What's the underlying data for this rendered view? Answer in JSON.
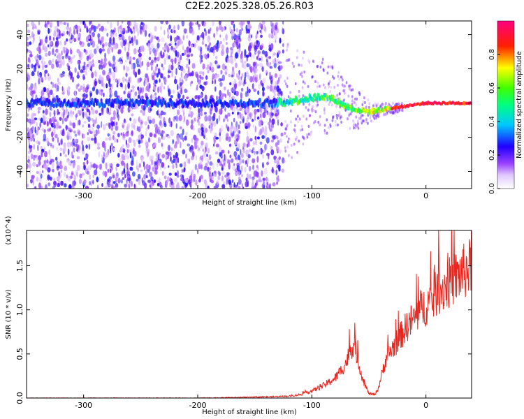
{
  "title": "C2E2.2025.328.05.26.R03",
  "chart_data": [
    {
      "type": "heatmap",
      "xlabel": "Height of straight line (km)",
      "ylabel": "Frequency (Hz)",
      "xlim": [
        -350,
        40
      ],
      "ylim": [
        -50,
        48
      ],
      "xticks": [
        -300,
        -200,
        -100,
        0
      ],
      "xtick_labels": [
        "-300",
        "-200",
        "-100",
        "0"
      ],
      "yticks": [
        -40,
        -20,
        0,
        20,
        40
      ],
      "ytick_labels": [
        "-40",
        "-20",
        "0",
        "20",
        "40"
      ],
      "colorbar": {
        "label": "Normalized spectral amplitude",
        "range": [
          0.0,
          1.0
        ],
        "ticks": [
          0.0,
          0.2,
          0.4,
          0.6,
          0.8
        ],
        "tick_labels": [
          "0.0",
          "0.2",
          "0.4",
          "0.6",
          "0.8"
        ],
        "colormap": [
          "#ffffff",
          "#7a00ff",
          "#0000ff",
          "#00ffff",
          "#00ff00",
          "#ffff00",
          "#ff0000",
          "#ff0080"
        ]
      },
      "ridge": {
        "x": [
          -350,
          -130,
          -110,
          -90,
          -80,
          -70,
          -60,
          -50,
          -40,
          -30,
          -20,
          -10,
          0,
          10,
          20,
          30,
          40
        ],
        "y": [
          0,
          0,
          2,
          4,
          2,
          -2,
          -4,
          -5,
          -4,
          -3,
          -2,
          -1,
          0,
          0,
          0,
          0,
          0
        ]
      },
      "noise_region_x": [
        -350,
        -125
      ],
      "grid": false
    },
    {
      "type": "line",
      "xlabel": "Height of straight line (km)",
      "ylabel": "SNR (10 * v/v)",
      "y_multiplier": "(x10^4)",
      "xlim": [
        -350,
        40
      ],
      "ylim": [
        0,
        1.9
      ],
      "xticks": [
        -300,
        -200,
        -100,
        0
      ],
      "xtick_labels": [
        "-300",
        "-200",
        "-100",
        "0"
      ],
      "yticks": [
        0.0,
        0.5,
        1.0,
        1.5
      ],
      "ytick_labels": [
        "0.0",
        "0.5",
        "1.0",
        "1.5"
      ],
      "series": [
        {
          "color": "#e8261e",
          "x": [
            -350,
            -300,
            -200,
            -150,
            -120,
            -110,
            -100,
            -90,
            -80,
            -75,
            -70,
            -66,
            -63,
            -60,
            -55,
            -50,
            -45,
            -42,
            -38,
            -35,
            -30,
            -25,
            -20,
            -15,
            -10,
            -5,
            0,
            5,
            10,
            15,
            20,
            25,
            30,
            35,
            40
          ],
          "y": [
            0.0,
            0.0,
            0.0,
            0.01,
            0.02,
            0.04,
            0.08,
            0.14,
            0.22,
            0.3,
            0.4,
            0.55,
            0.62,
            0.45,
            0.2,
            0.05,
            0.04,
            0.1,
            0.3,
            0.45,
            0.55,
            0.65,
            0.75,
            0.85,
            0.9,
            1.0,
            1.05,
            1.1,
            1.2,
            1.25,
            1.3,
            1.35,
            1.4,
            1.45,
            1.5
          ]
        }
      ],
      "grid": false
    }
  ]
}
